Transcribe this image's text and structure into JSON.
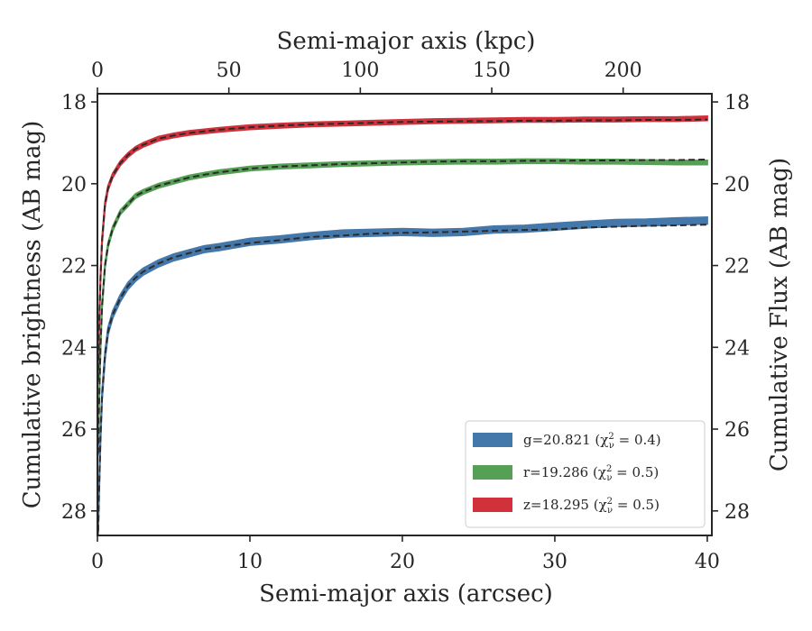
{
  "chart_data": {
    "type": "line",
    "x_top_label": "Semi-major axis (kpc)",
    "x_bottom_label": "Semi-major axis (arcsec)",
    "y_left_label": "Cumulative brightness (AB mag)",
    "y_right_label": "Cumulative Flux (AB mag)",
    "x_bottom_ticks": [
      "0",
      "10",
      "20",
      "30",
      "40"
    ],
    "x_top_ticks": [
      "0",
      "50",
      "100",
      "150",
      "200"
    ],
    "y_ticks": [
      "18",
      "20",
      "22",
      "24",
      "26",
      "28"
    ],
    "xlim": [
      0,
      40.3
    ],
    "ylim_inverted": [
      28.6,
      17.8
    ],
    "top_axis_kpc_per_arcsec": 5.8,
    "grid": false,
    "legend_position": "lower-right",
    "legend": [
      {
        "text": "g=20.821 (χ",
        "sup": "2",
        "sub": "ν",
        "tail": " = 0.4)",
        "color": "#4477aa"
      },
      {
        "text": "r=19.286 (χ",
        "sup": "2",
        "sub": "ν",
        "tail": " = 0.5)",
        "color": "#55a055"
      },
      {
        "text": "z=18.295 (χ",
        "sup": "2",
        "sub": "ν",
        "tail": " = 0.5)",
        "color": "#d0313a"
      }
    ],
    "series": [
      {
        "key": "g",
        "color": "#4477aa",
        "x": [
          0.05,
          0.1,
          0.2,
          0.3,
          0.5,
          0.7,
          1,
          1.5,
          2,
          2.5,
          3,
          4,
          5,
          6,
          7,
          8,
          10,
          12,
          14,
          16,
          18,
          20,
          22,
          24,
          26,
          28,
          30,
          32,
          34,
          36,
          38,
          40
        ],
        "y": [
          28.5,
          27.6,
          26.2,
          25.2,
          24.2,
          23.6,
          23.2,
          22.8,
          22.5,
          22.3,
          22.15,
          21.95,
          21.8,
          21.7,
          21.6,
          21.55,
          21.45,
          21.38,
          21.3,
          21.27,
          21.22,
          21.2,
          21.19,
          21.17,
          21.15,
          21.13,
          21.12,
          21.07,
          21.05,
          21.03,
          21.02,
          21.0
        ],
        "band_y": [
          28.5,
          27.6,
          26.2,
          25.2,
          24.2,
          23.6,
          23.2,
          22.8,
          22.5,
          22.3,
          22.15,
          21.95,
          21.8,
          21.7,
          21.6,
          21.55,
          21.42,
          21.36,
          21.28,
          21.22,
          21.2,
          21.18,
          21.2,
          21.18,
          21.12,
          21.1,
          21.05,
          21.0,
          20.96,
          20.95,
          20.92,
          20.9
        ],
        "band_halfwidth": 0.08
      },
      {
        "key": "r",
        "color": "#55a055",
        "x": [
          0.05,
          0.1,
          0.2,
          0.3,
          0.5,
          0.7,
          1,
          1.5,
          2,
          2.5,
          3,
          4,
          5,
          6,
          7,
          8,
          10,
          12,
          14,
          16,
          18,
          20,
          22,
          24,
          26,
          28,
          30,
          32,
          34,
          36,
          38,
          40
        ],
        "y": [
          26.6,
          25.5,
          24.0,
          23.0,
          22.0,
          21.5,
          21.1,
          20.7,
          20.5,
          20.3,
          20.2,
          20.05,
          19.95,
          19.85,
          19.78,
          19.72,
          19.63,
          19.58,
          19.55,
          19.52,
          19.5,
          19.48,
          19.46,
          19.45,
          19.45,
          19.44,
          19.44,
          19.43,
          19.43,
          19.42,
          19.42,
          19.41
        ],
        "band_y": [
          26.6,
          25.5,
          24.0,
          23.0,
          22.0,
          21.5,
          21.1,
          20.7,
          20.5,
          20.3,
          20.2,
          20.05,
          19.95,
          19.85,
          19.78,
          19.72,
          19.63,
          19.58,
          19.55,
          19.52,
          19.5,
          19.48,
          19.47,
          19.46,
          19.46,
          19.45,
          19.45,
          19.46,
          19.46,
          19.47,
          19.48,
          19.48
        ],
        "band_halfwidth": 0.05
      },
      {
        "key": "z",
        "color": "#d0313a",
        "x": [
          0.05,
          0.1,
          0.2,
          0.3,
          0.5,
          0.7,
          1,
          1.5,
          2,
          2.5,
          3,
          4,
          5,
          6,
          7,
          8,
          10,
          12,
          14,
          16,
          18,
          20,
          22,
          24,
          26,
          28,
          30,
          32,
          34,
          36,
          38,
          40
        ],
        "y": [
          24.8,
          23.6,
          22.3,
          21.4,
          20.5,
          20.1,
          19.8,
          19.5,
          19.3,
          19.15,
          19.05,
          18.9,
          18.82,
          18.76,
          18.72,
          18.68,
          18.62,
          18.58,
          18.55,
          18.53,
          18.51,
          18.49,
          18.48,
          18.47,
          18.47,
          18.46,
          18.46,
          18.45,
          18.45,
          18.44,
          18.44,
          18.43
        ],
        "band_y": [
          24.8,
          23.6,
          22.3,
          21.4,
          20.5,
          20.1,
          19.8,
          19.5,
          19.3,
          19.15,
          19.05,
          18.9,
          18.82,
          18.76,
          18.72,
          18.68,
          18.62,
          18.58,
          18.55,
          18.53,
          18.51,
          18.49,
          18.47,
          18.46,
          18.45,
          18.44,
          18.44,
          18.43,
          18.43,
          18.42,
          18.42,
          18.4
        ],
        "band_halfwidth": 0.05
      }
    ]
  }
}
